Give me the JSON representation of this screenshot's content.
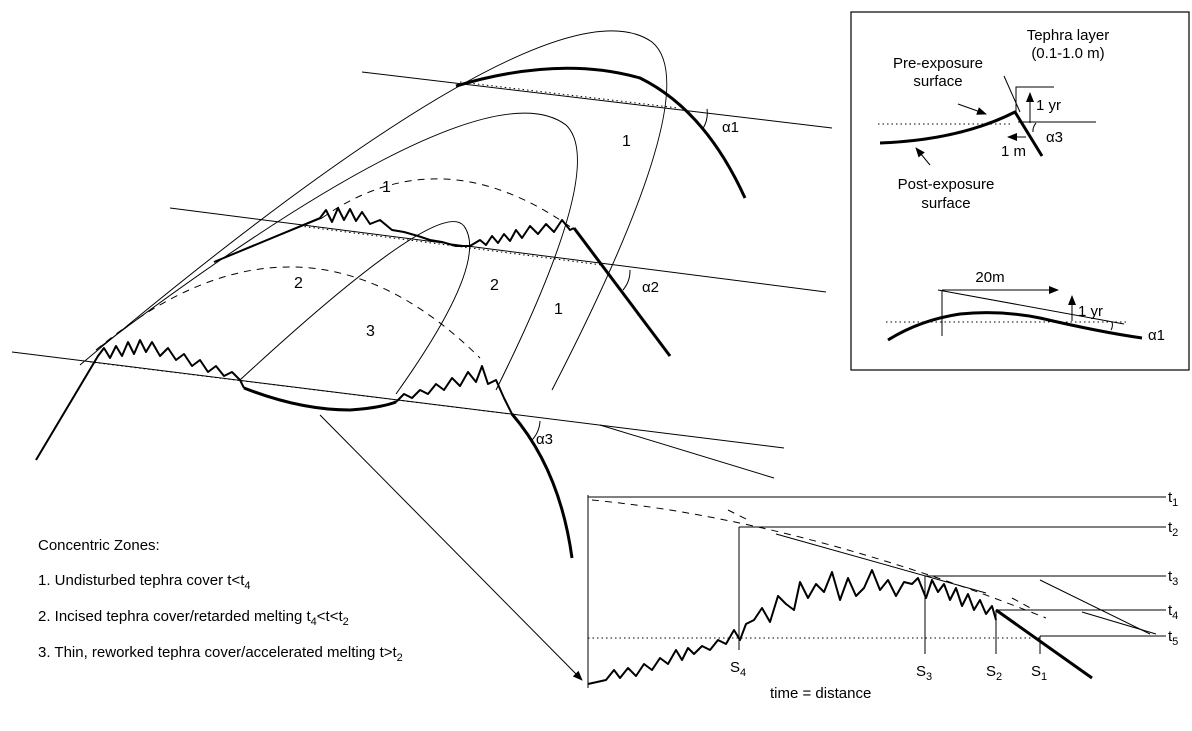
{
  "main_diagram": {
    "zone_labels": [
      "1",
      "1",
      "2",
      "2",
      "1",
      "3"
    ],
    "angle_labels": {
      "a1": "α1",
      "a2": "α2",
      "a3": "α3"
    }
  },
  "inset_top": {
    "tephra_layer": "Tephra layer",
    "tephra_thickness": "(0.1-1.0 m)",
    "pre_exposure_1": "Pre-exposure",
    "pre_exposure_2": "surface",
    "post_exposure_1": "Post-exposure",
    "post_exposure_2": "surface",
    "one_yr": "1 yr",
    "one_m": "1 m",
    "alpha3": "α3"
  },
  "inset_bottom": {
    "distance": "20m",
    "one_yr": "1 yr",
    "alpha1": "α1"
  },
  "legend": {
    "title": "Concentric Zones:",
    "item1_text": "1. Undisturbed tephra cover t<t",
    "item1_sub": "4",
    "item2_text": "2. Incised tephra cover/retarded melting t",
    "item2_sub1": "4",
    "item2_mid": "<t<t",
    "item2_sub2": "2",
    "item3_text": "3. Thin, reworked tephra cover/accelerated melting t>t",
    "item3_sub": "2"
  },
  "profile": {
    "time_labels": [
      "t",
      "t",
      "t",
      "t",
      "t"
    ],
    "time_subs": [
      "1",
      "2",
      "3",
      "4",
      "5"
    ],
    "s_labels": [
      "S",
      "S",
      "S",
      "S"
    ],
    "s_subs": [
      "4",
      "3",
      "2",
      "1"
    ],
    "caption": "time = distance"
  }
}
